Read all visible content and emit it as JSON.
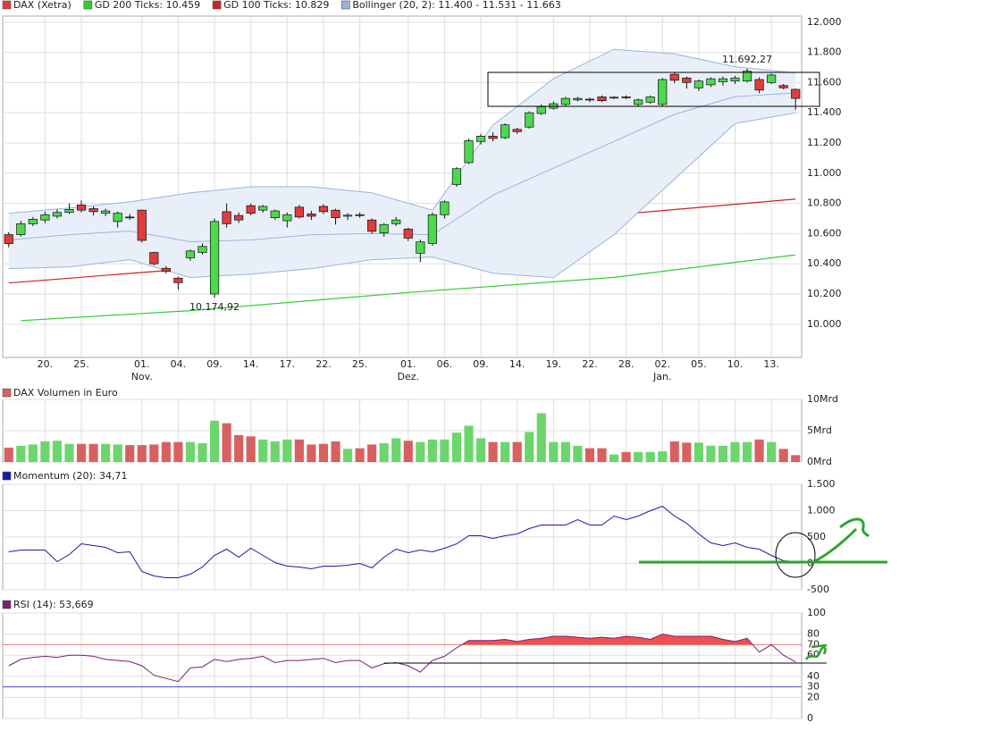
{
  "chart_data": [
    {
      "type": "candlestick",
      "name": "DAX (Xetra)",
      "color": "#e03c3c",
      "up_color": "#4cd94c",
      "down_color": "#e03c3c",
      "categories": [
        null,
        null,
        null,
        "20.",
        null,
        null,
        "25.",
        null,
        null,
        null,
        null,
        "01.",
        null,
        null,
        "04.",
        null,
        null,
        "09.",
        null,
        null,
        "14.",
        null,
        null,
        "17.",
        null,
        null,
        "22.",
        null,
        null,
        "25.",
        null,
        null,
        null,
        "01.",
        null,
        null,
        "06.",
        null,
        null,
        "09.",
        null,
        null,
        "14.",
        null,
        null,
        "19.",
        null,
        null,
        "22.",
        null,
        null,
        "28.",
        null,
        null,
        "02.",
        null,
        null,
        "05.",
        null,
        null,
        "10.",
        null,
        null,
        "13.",
        null,
        null
      ],
      "category_months": [
        null,
        null,
        null,
        null,
        null,
        null,
        null,
        null,
        null,
        null,
        null,
        "Nov.",
        null,
        null,
        null,
        null,
        null,
        null,
        null,
        null,
        null,
        null,
        null,
        null,
        null,
        null,
        null,
        null,
        null,
        null,
        null,
        null,
        null,
        "Dez.",
        null,
        null,
        null,
        null,
        null,
        null,
        null,
        null,
        null,
        null,
        null,
        null,
        null,
        null,
        null,
        null,
        null,
        null,
        null,
        null,
        "Jan.",
        null,
        null,
        null,
        null,
        null,
        null,
        null,
        null,
        null,
        null,
        null
      ],
      "open": [
        10593,
        10593,
        10665,
        10690,
        10715,
        10740,
        10790,
        10765,
        10735,
        10680,
        10710,
        10755,
        10475,
        10370,
        10305,
        10440,
        10475,
        10200,
        10745,
        10720,
        10785,
        10755,
        10705,
        10685,
        10775,
        10730,
        10780,
        10755,
        10715,
        10725,
        10690,
        10605,
        10665,
        10630,
        10470,
        10535,
        10725,
        10925,
        11070,
        11210,
        11245,
        11235,
        11290,
        11305,
        11395,
        11430,
        11455,
        11485,
        11490,
        11505,
        11498,
        11505,
        11455,
        11470,
        11455,
        11655,
        11630,
        11565,
        11585,
        11605,
        11610,
        11610,
        11620,
        11600,
        11580,
        11555
      ],
      "high": [
        10610,
        10685,
        10710,
        10745,
        10760,
        10800,
        10820,
        10780,
        10765,
        10745,
        10730,
        10760,
        10480,
        10385,
        10315,
        10495,
        10535,
        10700,
        10800,
        10740,
        10800,
        10790,
        10760,
        10740,
        10790,
        10750,
        10795,
        10765,
        10735,
        10740,
        10700,
        10670,
        10710,
        10640,
        10560,
        10740,
        10820,
        11040,
        11230,
        11260,
        11270,
        11330,
        11300,
        11410,
        11455,
        11475,
        11505,
        11505,
        11500,
        11515,
        11510,
        11515,
        11495,
        11515,
        11630,
        11665,
        11640,
        11620,
        11635,
        11640,
        11645,
        11692.27,
        11635,
        11660,
        11590,
        11560
      ],
      "low": [
        10510,
        10580,
        10650,
        10670,
        10700,
        10730,
        10740,
        10720,
        10715,
        10640,
        10690,
        10540,
        10390,
        10335,
        10230,
        10420,
        10460,
        10174.92,
        10640,
        10670,
        10720,
        10740,
        10690,
        10640,
        10700,
        10690,
        10730,
        10660,
        10690,
        10705,
        10600,
        10580,
        10650,
        10550,
        10410,
        10520,
        10700,
        10910,
        11060,
        11190,
        11210,
        11225,
        11260,
        11295,
        11385,
        11420,
        11445,
        11475,
        11470,
        11470,
        11490,
        11490,
        11440,
        11460,
        11440,
        11595,
        11560,
        11545,
        11570,
        11580,
        11590,
        11600,
        11530,
        11590,
        11555,
        11420
      ],
      "close": [
        10534,
        10665,
        10695,
        10725,
        10740,
        10760,
        10755,
        10745,
        10750,
        10735,
        10705,
        10555,
        10400,
        10350,
        10275,
        10485,
        10515,
        10680,
        10665,
        10690,
        10735,
        10780,
        10750,
        10725,
        10710,
        10715,
        10745,
        10705,
        10722,
        10720,
        10615,
        10660,
        10690,
        10570,
        10545,
        10725,
        10810,
        11030,
        11215,
        11245,
        11230,
        11320,
        11275,
        11400,
        11440,
        11460,
        11495,
        11495,
        11485,
        11480,
        11503,
        11500,
        11485,
        11505,
        11620,
        11615,
        11600,
        11610,
        11625,
        11625,
        11630,
        11675,
        11550,
        11650,
        11565,
        11495
      ],
      "overlays": [
        {
          "kind": "line",
          "name": "GD 200 Ticks: 10.459",
          "color": "#33cc33",
          "x": [
            1,
            15,
            33,
            50,
            65
          ],
          "values": [
            10024,
            10090,
            10210,
            10310,
            10459
          ]
        },
        {
          "kind": "line",
          "name": "GD 100 Ticks: 10.829",
          "color": "#cc2222",
          "x": [
            0,
            15,
            33,
            50,
            65
          ],
          "values": [
            10273,
            10368,
            10546,
            10724,
            10829
          ]
        },
        {
          "kind": "band",
          "name": "Bollinger (20, 2): 11.400 - 11.531 - 11.663",
          "color": "#9ab4dc",
          "fill": "#e9eff9",
          "x": [
            0,
            5,
            10,
            15,
            20,
            25,
            30,
            35,
            40,
            45,
            50,
            55,
            60,
            65
          ],
          "upper": [
            10735,
            10770,
            10810,
            10870,
            10910,
            10910,
            10870,
            10755,
            11318,
            11625,
            11820,
            11790,
            11705,
            11663
          ],
          "middle": [
            10558,
            10593,
            10617,
            10546,
            10558,
            10593,
            10600,
            10593,
            10855,
            11033,
            11210,
            11390,
            11507,
            11531
          ],
          "lower": [
            10368,
            10380,
            10427,
            10309,
            10332,
            10368,
            10427,
            10445,
            10338,
            10309,
            10593,
            10961,
            11329,
            11400
          ]
        }
      ],
      "annotations": [
        {
          "label": "11.692,27",
          "value": 11692.27,
          "category": 61
        },
        {
          "label": "10.174,92",
          "value": 10174.92,
          "category": 17
        }
      ],
      "ylim": [
        9780,
        12040
      ],
      "yticks": [
        {
          "value": 10000,
          "label": "10.000"
        },
        {
          "value": 10200,
          "label": "10.200"
        },
        {
          "value": 10400,
          "label": "10.400"
        },
        {
          "value": 10600,
          "label": "10.600"
        },
        {
          "value": 10800,
          "label": "10.800"
        },
        {
          "value": 11000,
          "label": "11.000"
        },
        {
          "value": 11200,
          "label": "11.200"
        },
        {
          "value": 11400,
          "label": "11.400"
        },
        {
          "value": 11600,
          "label": "11.600"
        },
        {
          "value": 11800,
          "label": "11.800"
        },
        {
          "value": 12000,
          "label": "12.000"
        }
      ],
      "grid": true
    },
    {
      "type": "bar",
      "name": "DAX Volumen in Euro",
      "color": "#d96060",
      "up_color": "#6bd66b",
      "down_color": "#d96060",
      "values": [
        2.3,
        2.6,
        2.8,
        3.3,
        3.4,
        2.9,
        2.9,
        2.9,
        2.9,
        2.8,
        2.7,
        2.7,
        2.8,
        3.2,
        3.2,
        3.2,
        3.0,
        6.6,
        6.2,
        4.3,
        4.1,
        3.6,
        3.3,
        3.6,
        3.6,
        2.8,
        2.9,
        3.3,
        2.1,
        2.2,
        2.8,
        3.0,
        3.8,
        3.4,
        3.2,
        3.6,
        3.6,
        4.7,
        5.8,
        3.8,
        3.2,
        3.2,
        3.2,
        4.8,
        7.8,
        3.2,
        3.2,
        2.6,
        2.2,
        2.2,
        1.2,
        1.6,
        1.6,
        1.6,
        1.7,
        3.3,
        3.1,
        3.1,
        2.6,
        2.6,
        3.2,
        3.2,
        3.6,
        3.2,
        2.1,
        1.1
      ],
      "ylim": [
        0,
        10
      ],
      "yticks": [
        {
          "value": 0,
          "label": "0Mrd"
        },
        {
          "value": 5,
          "label": "5Mrd"
        },
        {
          "value": 10,
          "label": "10Mrd"
        }
      ],
      "grid": true
    },
    {
      "type": "line",
      "name": "Momentum (20): 34,71",
      "color": "#1a1aa8",
      "values": [
        220,
        254,
        254,
        254,
        34,
        170,
        373,
        339,
        305,
        203,
        220,
        -153,
        -237,
        -271,
        -271,
        -203,
        -68,
        153,
        271,
        119,
        288,
        153,
        17,
        -51,
        -68,
        -102,
        -51,
        -51,
        -34,
        0,
        -85,
        119,
        271,
        203,
        254,
        220,
        288,
        373,
        525,
        525,
        475,
        525,
        559,
        661,
        729,
        729,
        729,
        831,
        729,
        729,
        898,
        831,
        898,
        1000,
        1085,
        898,
        763,
        559,
        390,
        339,
        390,
        305,
        271,
        153,
        51,
        34.71
      ],
      "ylim": [
        -500,
        1500
      ],
      "yticks": [
        {
          "value": 1500,
          "label": "1.500"
        },
        {
          "value": 1000,
          "label": "1.000"
        },
        500,
        0,
        -500
      ],
      "grid": true
    },
    {
      "type": "line",
      "name": "RSI (14): 53,669",
      "color": "#7a1f7a",
      "fill_above": "#f05050",
      "values": [
        50,
        56,
        58,
        59,
        58,
        60,
        60,
        59,
        56,
        55,
        54,
        50,
        41,
        38,
        35,
        48,
        49,
        56,
        54,
        56,
        57,
        59,
        53,
        55,
        55,
        56,
        57,
        53,
        55,
        55,
        48,
        52,
        53,
        50,
        44,
        55,
        59,
        67,
        74,
        74,
        74,
        75,
        73,
        75,
        76,
        78,
        78,
        77,
        76,
        77,
        76,
        78,
        77,
        75,
        80,
        78,
        78,
        78,
        78,
        75,
        73,
        76,
        63,
        70,
        60,
        53.669
      ],
      "reference_lines": [
        {
          "value": 70,
          "color": "#f08080"
        },
        {
          "value": 30,
          "color": "#4a4ae0"
        }
      ],
      "ylim": [
        0,
        100
      ],
      "yticks": [
        100,
        80,
        70,
        60,
        40,
        30,
        20,
        0
      ],
      "grid": true
    }
  ]
}
